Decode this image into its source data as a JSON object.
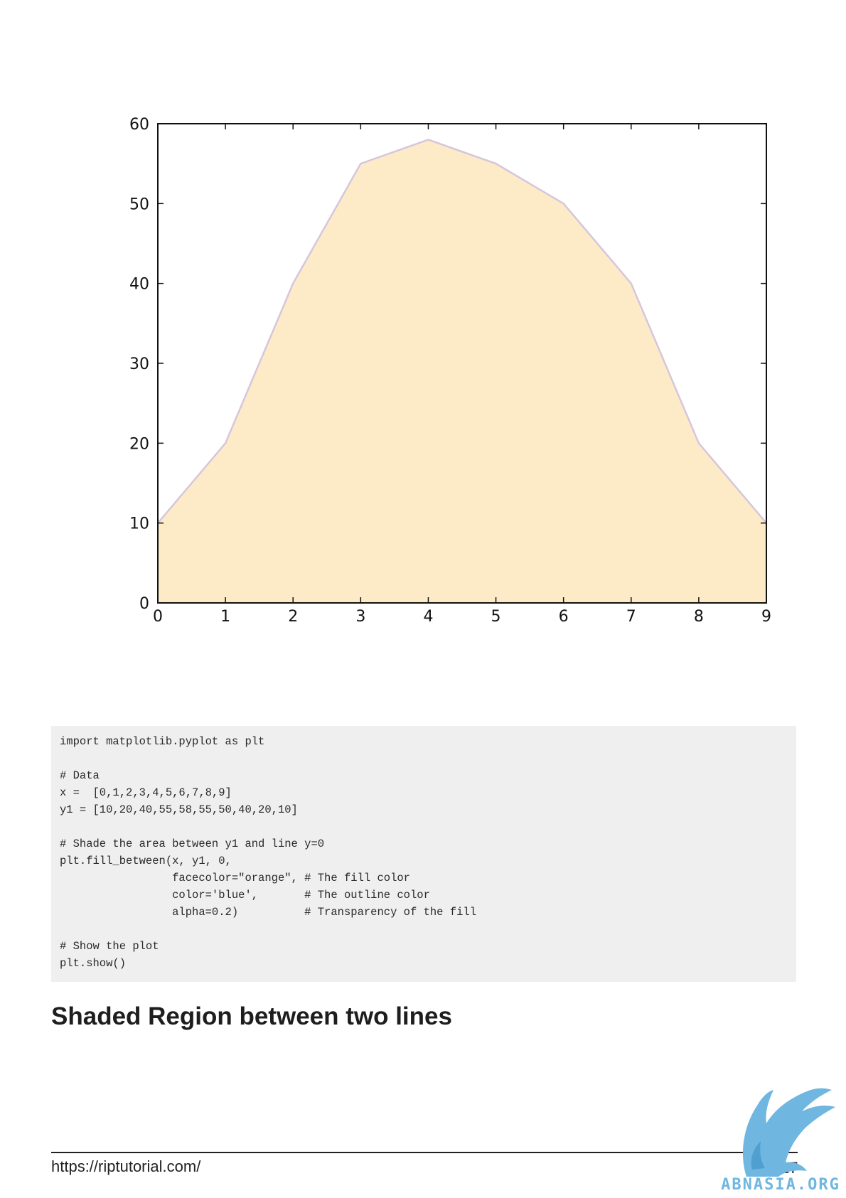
{
  "chart_data": {
    "type": "area",
    "x": [
      0,
      1,
      2,
      3,
      4,
      5,
      6,
      7,
      8,
      9
    ],
    "series": [
      {
        "values": [
          10,
          20,
          40,
          55,
          58,
          55,
          50,
          40,
          20,
          10
        ]
      }
    ],
    "xlim": [
      0,
      9
    ],
    "ylim": [
      0,
      60
    ],
    "xticks": [
      "0",
      "1",
      "2",
      "3",
      "4",
      "5",
      "6",
      "7",
      "8",
      "9"
    ],
    "yticks": [
      "0",
      "10",
      "20",
      "30",
      "40",
      "50",
      "60"
    ],
    "fill_color": "#fdebc8",
    "line_color": "#d6c6dc",
    "grid": false
  },
  "code": {
    "lines": [
      "import matplotlib.pyplot as plt",
      "",
      "# Data",
      "x =  [0,1,2,3,4,5,6,7,8,9]",
      "y1 = [10,20,40,55,58,55,50,40,20,10]",
      "",
      "# Shade the area between y1 and line y=0",
      "plt.fill_between(x, y1, 0,",
      "                 facecolor=\"orange\", # The fill color",
      "                 color='blue',       # The outline color",
      "                 alpha=0.2)          # Transparency of the fill",
      "",
      "# Show the plot",
      "plt.show()"
    ]
  },
  "heading": "Shaded Region between two lines",
  "footer": {
    "url": "https://riptutorial.com/",
    "page_number": "17"
  },
  "watermark": {
    "text": "ABNASIA.ORG",
    "icon": "griffin-logo-icon",
    "color": "#6fb6e0"
  }
}
